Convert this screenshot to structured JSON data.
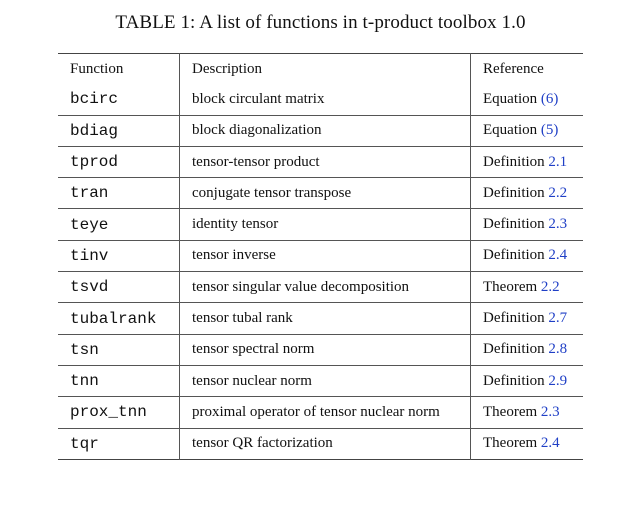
{
  "caption": "TABLE 1: A list of functions in t-product toolbox 1.0",
  "table": {
    "headers": [
      "Function",
      "Description",
      "Reference"
    ],
    "rows": [
      {
        "function": "bcirc",
        "description": "block circulant matrix",
        "ref_type": "Equation",
        "ref_num": "(6)"
      },
      {
        "function": "bdiag",
        "description": "block diagonalization",
        "ref_type": "Equation",
        "ref_num": "(5)"
      },
      {
        "function": "tprod",
        "description": "tensor-tensor product",
        "ref_type": "Definition",
        "ref_num": "2.1"
      },
      {
        "function": "tran",
        "description": "conjugate tensor transpose",
        "ref_type": "Definition",
        "ref_num": "2.2"
      },
      {
        "function": "teye",
        "description": "identity tensor",
        "ref_type": "Definition",
        "ref_num": "2.3"
      },
      {
        "function": "tinv",
        "description": "tensor inverse",
        "ref_type": "Definition",
        "ref_num": "2.4"
      },
      {
        "function": "tsvd",
        "description": "tensor singular value decomposition",
        "ref_type": "Theorem",
        "ref_num": "2.2"
      },
      {
        "function": "tubalrank",
        "description": "tensor tubal rank",
        "ref_type": "Definition",
        "ref_num": "2.7"
      },
      {
        "function": "tsn",
        "description": "tensor spectral norm",
        "ref_type": "Definition",
        "ref_num": "2.8"
      },
      {
        "function": "tnn",
        "description": "tensor nuclear norm",
        "ref_type": "Definition",
        "ref_num": "2.9"
      },
      {
        "function": "prox_tnn",
        "description": "proximal operator of tensor nuclear norm",
        "ref_type": "Theorem",
        "ref_num": "2.3"
      },
      {
        "function": "tqr",
        "description": "tensor QR factorization",
        "ref_type": "Theorem",
        "ref_num": "2.4"
      }
    ]
  },
  "colors": {
    "link": "#1f3fc6",
    "rule": "#555555"
  }
}
